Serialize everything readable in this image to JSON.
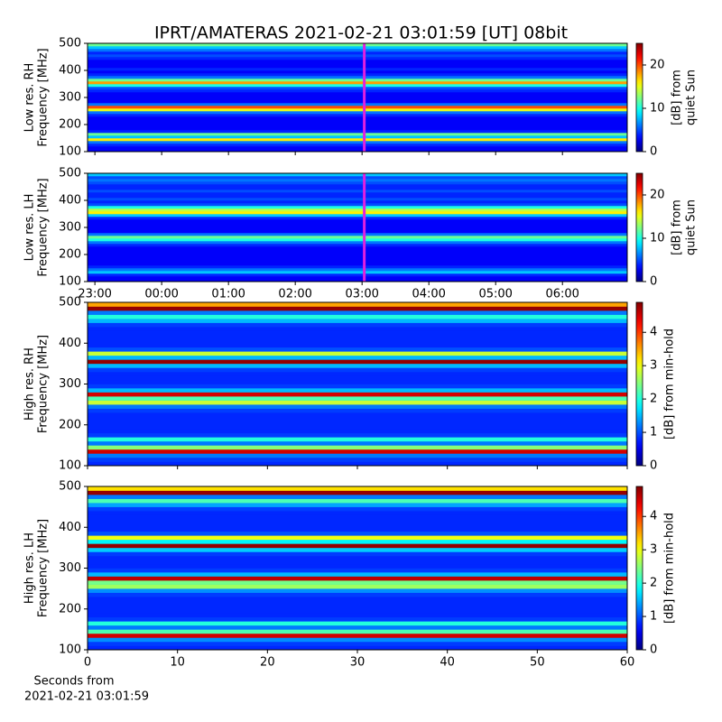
{
  "chart_data": [
    {
      "type": "heatmap",
      "title": "IPRT/AMATERAS 2021-02-21 03:01:59 [UT]   08bit",
      "ylabel": [
        "Low res. RH",
        "Frequency [MHz]"
      ],
      "ylim": [
        100,
        500
      ],
      "yticks": [
        100,
        200,
        300,
        400,
        500
      ],
      "xlim": [
        22.89,
        30.97
      ],
      "ybins": [
        100,
        110,
        120,
        130,
        140,
        150,
        160,
        170,
        180,
        190,
        200,
        210,
        220,
        230,
        240,
        250,
        260,
        270,
        280,
        290,
        300,
        310,
        320,
        330,
        340,
        350,
        360,
        370,
        380,
        390,
        400,
        410,
        420,
        430,
        440,
        450,
        460,
        470,
        480,
        490,
        500
      ],
      "values": [
        3,
        3,
        4,
        6,
        16,
        8,
        12,
        4,
        3,
        3,
        3,
        3,
        3,
        4,
        6,
        15,
        20,
        6,
        3,
        3,
        3,
        3,
        4,
        5,
        10,
        18,
        12,
        6,
        4,
        3,
        4,
        3,
        3,
        3,
        4,
        5,
        4,
        6,
        8,
        12
      ],
      "markers": [
        {
          "x": 27.033,
          "color": "#e020e0"
        }
      ],
      "colormap": "jet",
      "colorbar": {
        "label": [
          "[dB] from",
          "quiet Sun"
        ],
        "clim": [
          0,
          25
        ],
        "ticks": [
          0,
          10,
          20
        ]
      }
    },
    {
      "type": "heatmap",
      "ylabel": [
        "Low res. LH",
        "Frequency [MHz]"
      ],
      "ylim": [
        100,
        500
      ],
      "yticks": [
        100,
        200,
        300,
        400,
        500
      ],
      "xlim": [
        22.89,
        30.97
      ],
      "xticks": [
        {
          "value": 23,
          "label": "23:00"
        },
        {
          "value": 24,
          "label": "00:00"
        },
        {
          "value": 25,
          "label": "01:00"
        },
        {
          "value": 26,
          "label": "02:00"
        },
        {
          "value": 27,
          "label": "03:00"
        },
        {
          "value": 28,
          "label": "04:00"
        },
        {
          "value": 29,
          "label": "05:00"
        },
        {
          "value": 30,
          "label": "06:00"
        }
      ],
      "ybins": [
        100,
        110,
        120,
        130,
        140,
        150,
        160,
        170,
        180,
        190,
        200,
        210,
        220,
        230,
        240,
        250,
        260,
        270,
        280,
        290,
        300,
        310,
        320,
        330,
        340,
        350,
        360,
        370,
        380,
        390,
        400,
        410,
        420,
        430,
        440,
        450,
        460,
        470,
        480,
        490,
        500
      ],
      "values": [
        3,
        3,
        4,
        8,
        6,
        4,
        3,
        3,
        3,
        3,
        3,
        3,
        3,
        4,
        6,
        10,
        12,
        6,
        3,
        3,
        3,
        3,
        3,
        4,
        8,
        16,
        14,
        10,
        5,
        4,
        5,
        4,
        4,
        5,
        4,
        4,
        5,
        6,
        5,
        8
      ],
      "markers": [
        {
          "x": 27.033,
          "color": "#e020e0"
        }
      ],
      "colormap": "jet",
      "colorbar": {
        "label": [
          "[dB] from",
          "quiet Sun"
        ],
        "clim": [
          0,
          25
        ],
        "ticks": [
          0,
          10,
          20
        ]
      }
    },
    {
      "type": "heatmap",
      "ylabel": [
        "High res. RH",
        "Frequency [MHz]"
      ],
      "ylim": [
        100,
        500
      ],
      "yticks": [
        100,
        200,
        300,
        400,
        500
      ],
      "xlim": [
        0,
        60
      ],
      "ybins": [
        100,
        110,
        120,
        130,
        140,
        150,
        160,
        170,
        180,
        190,
        200,
        210,
        220,
        230,
        240,
        250,
        260,
        270,
        280,
        290,
        300,
        310,
        320,
        330,
        340,
        350,
        360,
        370,
        380,
        390,
        400,
        410,
        420,
        430,
        440,
        450,
        460,
        470,
        480,
        490,
        500
      ],
      "values": [
        0.8,
        0.9,
        1.2,
        4.5,
        2.5,
        1.2,
        2,
        0.9,
        0.8,
        0.8,
        0.8,
        0.8,
        0.8,
        0.9,
        1.2,
        2.8,
        2.2,
        4.5,
        1.5,
        0.9,
        0.8,
        0.8,
        0.8,
        0.9,
        1.5,
        4.8,
        1.5,
        2.8,
        1,
        0.8,
        0.8,
        0.8,
        0.8,
        0.8,
        0.9,
        1.5,
        2,
        1.2,
        4.8,
        3.5
      ],
      "colormap": "jet",
      "colorbar": {
        "label": [
          "[dB] from min-hold"
        ],
        "clim": [
          0,
          4.9
        ],
        "ticks": [
          0,
          1,
          2,
          3,
          4
        ]
      }
    },
    {
      "type": "heatmap",
      "ylabel": [
        "High res. LH",
        "Frequency [MHz]"
      ],
      "xlabel": [
        "Seconds from",
        "2021-02-21 03:01:59"
      ],
      "ylim": [
        100,
        500
      ],
      "yticks": [
        100,
        200,
        300,
        400,
        500
      ],
      "xlim": [
        0,
        60
      ],
      "xticks": [
        0,
        10,
        20,
        30,
        40,
        50,
        60
      ],
      "ybins": [
        100,
        110,
        120,
        130,
        140,
        150,
        160,
        170,
        180,
        190,
        200,
        210,
        220,
        230,
        240,
        250,
        260,
        270,
        280,
        290,
        300,
        310,
        320,
        330,
        340,
        350,
        360,
        370,
        380,
        390,
        400,
        410,
        420,
        430,
        440,
        450,
        460,
        470,
        480,
        490,
        500
      ],
      "values": [
        0.8,
        0.9,
        1.3,
        4.5,
        2.2,
        1.2,
        2,
        0.9,
        0.8,
        0.8,
        0.8,
        0.8,
        0.8,
        0.9,
        1.3,
        2.6,
        2.4,
        4.6,
        1.5,
        0.9,
        0.8,
        0.8,
        0.8,
        0.9,
        1.6,
        4.8,
        1.8,
        3,
        1,
        0.8,
        0.8,
        0.8,
        0.8,
        0.8,
        0.9,
        1.4,
        2.2,
        1.2,
        4.8,
        3.2
      ],
      "colormap": "jet",
      "colorbar": {
        "label": [
          "[dB] from min-hold"
        ],
        "clim": [
          0,
          4.9
        ],
        "ticks": [
          0,
          1,
          2,
          3,
          4
        ]
      }
    }
  ]
}
